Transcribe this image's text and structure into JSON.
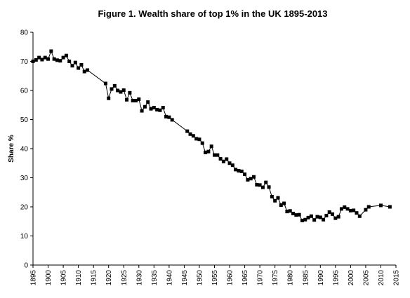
{
  "chart_data": {
    "type": "line",
    "title": "Figure 1. Wealth share of top 1% in the UK 1895-2013",
    "xlabel": "",
    "ylabel": "Share %",
    "xlim": [
      1895,
      2015
    ],
    "ylim": [
      0,
      80
    ],
    "x_ticks": [
      1895,
      1900,
      1905,
      1910,
      1915,
      1920,
      1925,
      1930,
      1935,
      1940,
      1945,
      1950,
      1955,
      1960,
      1965,
      1970,
      1975,
      1980,
      1985,
      1990,
      1995,
      2000,
      2005,
      2010,
      2015
    ],
    "y_ticks": [
      0,
      10,
      20,
      30,
      40,
      50,
      60,
      70,
      80
    ],
    "grid": false,
    "legend": false,
    "series": [
      {
        "color": "#000000",
        "marker": "square",
        "points": [
          [
            1895,
            70.0
          ],
          [
            1896,
            70.5
          ],
          [
            1897,
            71.3
          ],
          [
            1898,
            70.6
          ],
          [
            1899,
            71.3
          ],
          [
            1900,
            70.8
          ],
          [
            1901,
            73.5
          ],
          [
            1902,
            70.8
          ],
          [
            1903,
            70.4
          ],
          [
            1904,
            70.2
          ],
          [
            1905,
            71.3
          ],
          [
            1906,
            72.0
          ],
          [
            1907,
            70.0
          ],
          [
            1908,
            68.5
          ],
          [
            1909,
            69.6
          ],
          [
            1910,
            67.7
          ],
          [
            1911,
            68.8
          ],
          [
            1912,
            66.5
          ],
          [
            1913,
            67.0
          ],
          [
            1919,
            62.4
          ],
          [
            1920,
            57.3
          ],
          [
            1921,
            60.5
          ],
          [
            1922,
            61.6
          ],
          [
            1923,
            60.0
          ],
          [
            1924,
            59.5
          ],
          [
            1925,
            60.1
          ],
          [
            1926,
            56.8
          ],
          [
            1927,
            59.2
          ],
          [
            1928,
            56.5
          ],
          [
            1929,
            56.5
          ],
          [
            1930,
            57.0
          ],
          [
            1931,
            53.0
          ],
          [
            1932,
            54.4
          ],
          [
            1933,
            56.0
          ],
          [
            1934,
            53.7
          ],
          [
            1935,
            54.1
          ],
          [
            1936,
            53.4
          ],
          [
            1937,
            53.2
          ],
          [
            1938,
            54.1
          ],
          [
            1939,
            51.0
          ],
          [
            1940,
            50.8
          ],
          [
            1941,
            49.9
          ],
          [
            1946,
            46.0
          ],
          [
            1947,
            45.0
          ],
          [
            1948,
            44.4
          ],
          [
            1949,
            43.4
          ],
          [
            1950,
            43.2
          ],
          [
            1951,
            41.9
          ],
          [
            1952,
            38.7
          ],
          [
            1953,
            39.0
          ],
          [
            1954,
            40.8
          ],
          [
            1955,
            37.8
          ],
          [
            1956,
            37.8
          ],
          [
            1957,
            36.5
          ],
          [
            1958,
            35.6
          ],
          [
            1959,
            36.4
          ],
          [
            1960,
            35.0
          ],
          [
            1961,
            34.3
          ],
          [
            1962,
            32.8
          ],
          [
            1963,
            32.4
          ],
          [
            1964,
            32.2
          ],
          [
            1965,
            31.2
          ],
          [
            1966,
            29.3
          ],
          [
            1967,
            29.7
          ],
          [
            1968,
            30.3
          ],
          [
            1969,
            27.6
          ],
          [
            1970,
            27.5
          ],
          [
            1971,
            26.7
          ],
          [
            1972,
            28.4
          ],
          [
            1973,
            26.8
          ],
          [
            1974,
            23.5
          ],
          [
            1975,
            22.1
          ],
          [
            1976,
            23.1
          ],
          [
            1977,
            20.6
          ],
          [
            1978,
            21.2
          ],
          [
            1979,
            18.4
          ],
          [
            1980,
            18.6
          ],
          [
            1981,
            17.7
          ],
          [
            1982,
            17.2
          ],
          [
            1983,
            17.3
          ],
          [
            1984,
            15.3
          ],
          [
            1985,
            15.6
          ],
          [
            1986,
            16.3
          ],
          [
            1987,
            16.8
          ],
          [
            1988,
            15.5
          ],
          [
            1989,
            16.6
          ],
          [
            1990,
            16.4
          ],
          [
            1991,
            15.6
          ],
          [
            1992,
            17.0
          ],
          [
            1993,
            18.2
          ],
          [
            1994,
            17.5
          ],
          [
            1995,
            16.1
          ],
          [
            1996,
            16.6
          ],
          [
            1997,
            19.3
          ],
          [
            1998,
            19.9
          ],
          [
            1999,
            19.3
          ],
          [
            2000,
            18.7
          ],
          [
            2001,
            18.8
          ],
          [
            2002,
            17.9
          ],
          [
            2003,
            16.8
          ],
          [
            2005,
            19.0
          ],
          [
            2006,
            20.0
          ],
          [
            2010,
            20.5
          ],
          [
            2013,
            20.0
          ]
        ]
      }
    ]
  }
}
